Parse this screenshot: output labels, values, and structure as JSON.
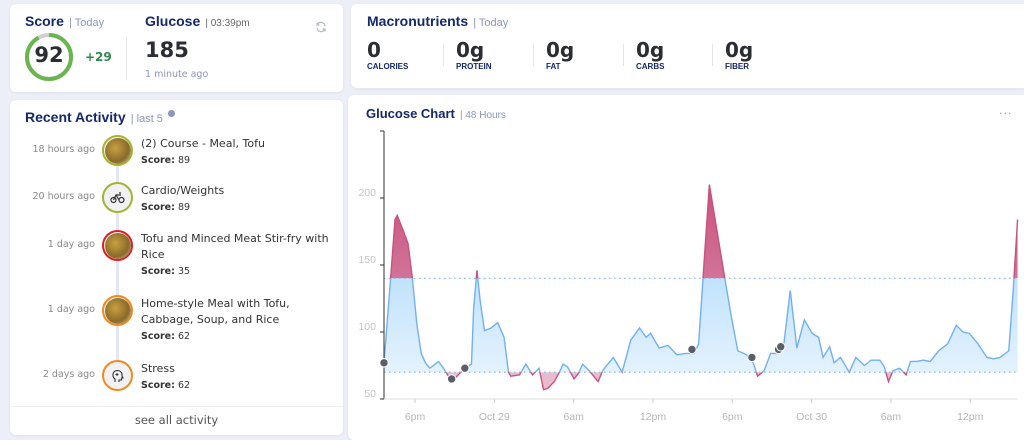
{
  "score": {
    "title": "Score",
    "period": "| Today",
    "value": "92",
    "fraction": 0.92,
    "delta": "+29",
    "ring_color": "#6ab550"
  },
  "glucose": {
    "title": "Glucose",
    "time": "| 03:39pm",
    "value": "185",
    "updated": "1 minute ago",
    "refresh_icon": "refresh-icon"
  },
  "macros": {
    "title": "Macronutrients",
    "period": "| Today",
    "items": [
      {
        "value": "0",
        "label": "CALORIES"
      },
      {
        "value": "0g",
        "label": "PROTEIN"
      },
      {
        "value": "0g",
        "label": "FAT"
      },
      {
        "value": "0g",
        "label": "CARBS"
      },
      {
        "value": "0g",
        "label": "FIBER"
      }
    ]
  },
  "activity": {
    "title": "Recent Activity",
    "period": "| last 5",
    "info_icon": "info-icon",
    "score_label": "Score:",
    "see_all": "see all activity",
    "items": [
      {
        "when": "18 hours ago",
        "name": "(2) Course - Meal, Tofu",
        "score": "89",
        "ring": "#a3b530",
        "icon": "meal-photo"
      },
      {
        "when": "20 hours ago",
        "name": "Cardio/Weights",
        "score": "89",
        "ring": "#a3b530",
        "icon": "bicycle-icon"
      },
      {
        "when": "1 day ago",
        "name": "Tofu and Minced Meat Stir-fry with Rice",
        "score": "35",
        "ring": "#e0201e",
        "icon": "meal-photo"
      },
      {
        "when": "1 day ago",
        "name": "Home-style Meal with Tofu, Cabbage, Soup, and Rice",
        "score": "62",
        "ring": "#f28a1c",
        "icon": "meal-photo"
      },
      {
        "when": "2 days ago",
        "name": "Stress",
        "score": "62",
        "ring": "#f28a1c",
        "icon": "head-icon"
      }
    ]
  },
  "chart": {
    "title": "Glucose Chart",
    "period": "| 48 Hours",
    "menu_icon": "more-icon"
  },
  "chart_data": {
    "type": "area",
    "ylim": [
      50,
      250
    ],
    "yticks": [
      50,
      100,
      150,
      200
    ],
    "xticks": [
      {
        "t": "Oct 28 18:00",
        "label": "6pm"
      },
      {
        "t": "Oct 29 00:00",
        "label": "Oct 29"
      },
      {
        "t": "Oct 29 06:00",
        "label": "6am"
      },
      {
        "t": "Oct 29 12:00",
        "label": "12pm"
      },
      {
        "t": "Oct 29 18:00",
        "label": "6pm"
      },
      {
        "t": "Oct 30 00:00",
        "label": "Oct 30"
      },
      {
        "t": "Oct 30 06:00",
        "label": "6am"
      },
      {
        "t": "Oct 30 12:00",
        "label": "12pm"
      }
    ],
    "target_range": [
      70,
      140
    ],
    "colors": {
      "in_range": "#72b0f5",
      "out_of_range": "#c9527f",
      "threshold": "#7cc6f5"
    },
    "series": [
      [
        "Oct 28 15:39",
        77
      ],
      [
        "Oct 28 16:09",
        140
      ],
      [
        "Oct 28 16:29",
        184
      ],
      [
        "Oct 28 16:39",
        187
      ],
      [
        "Oct 28 17:08",
        175
      ],
      [
        "Oct 28 17:28",
        166
      ],
      [
        "Oct 28 17:48",
        140
      ],
      [
        "Oct 28 18:08",
        106
      ],
      [
        "Oct 28 18:28",
        84
      ],
      [
        "Oct 28 18:47",
        77
      ],
      [
        "Oct 28 19:07",
        73
      ],
      [
        "Oct 28 19:47",
        78
      ],
      [
        "Oct 28 20:17",
        71
      ],
      [
        "Oct 28 20:46",
        63
      ],
      [
        "Oct 28 21:16",
        68
      ],
      [
        "Oct 28 21:46",
        73
      ],
      [
        "Oct 28 22:16",
        76
      ],
      [
        "Oct 28 22:26",
        118
      ],
      [
        "Oct 28 22:41",
        146
      ],
      [
        "Oct 28 22:55",
        124
      ],
      [
        "Oct 28 23:15",
        101
      ],
      [
        "Oct 28 23:45",
        103
      ],
      [
        "Oct 29 00:15",
        107
      ],
      [
        "Oct 29 00:44",
        96
      ],
      [
        "Oct 29 01:04",
        70
      ],
      [
        "Oct 29 01:14",
        67
      ],
      [
        "Oct 29 01:54",
        68
      ],
      [
        "Oct 29 02:23",
        76
      ],
      [
        "Oct 29 02:53",
        68
      ],
      [
        "Oct 29 03:23",
        73
      ],
      [
        "Oct 29 03:43",
        57
      ],
      [
        "Oct 29 04:03",
        58
      ],
      [
        "Oct 29 04:32",
        63
      ],
      [
        "Oct 29 04:52",
        69
      ],
      [
        "Oct 29 05:12",
        76
      ],
      [
        "Oct 29 05:32",
        74
      ],
      [
        "Oct 29 06:02",
        65
      ],
      [
        "Oct 29 06:21",
        69
      ],
      [
        "Oct 29 06:41",
        76
      ],
      [
        "Oct 29 07:11",
        71
      ],
      [
        "Oct 29 07:51",
        63
      ],
      [
        "Oct 29 08:11",
        71
      ],
      [
        "Oct 29 08:30",
        75
      ],
      [
        "Oct 29 09:00",
        81
      ],
      [
        "Oct 29 09:40",
        70
      ],
      [
        "Oct 29 10:19",
        94
      ],
      [
        "Oct 29 10:59",
        103
      ],
      [
        "Oct 29 11:29",
        96
      ],
      [
        "Oct 29 11:49",
        99
      ],
      [
        "Oct 29 12:28",
        88
      ],
      [
        "Oct 29 13:08",
        90
      ],
      [
        "Oct 29 13:48",
        83
      ],
      [
        "Oct 29 14:27",
        84
      ],
      [
        "Oct 29 15:07",
        84
      ],
      [
        "Oct 29 15:27",
        91
      ],
      [
        "Oct 29 15:47",
        140
      ],
      [
        "Oct 29 16:16",
        210
      ],
      [
        "Oct 29 16:46",
        180
      ],
      [
        "Oct 29 17:26",
        140
      ],
      [
        "Oct 29 17:56",
        111
      ],
      [
        "Oct 29 18:25",
        86
      ],
      [
        "Oct 29 19:05",
        83
      ],
      [
        "Oct 29 19:35",
        77
      ],
      [
        "Oct 29 19:55",
        67
      ],
      [
        "Oct 29 20:24",
        71
      ],
      [
        "Oct 29 20:54",
        84
      ],
      [
        "Oct 29 21:24",
        84
      ],
      [
        "Oct 29 21:54",
        91
      ],
      [
        "Oct 29 22:23",
        131
      ],
      [
        "Oct 29 22:53",
        88
      ],
      [
        "Oct 29 23:27",
        109
      ],
      [
        "Oct 30 00:03",
        99
      ],
      [
        "Oct 30 00:32",
        96
      ],
      [
        "Oct 30 00:52",
        81
      ],
      [
        "Oct 30 01:22",
        89
      ],
      [
        "Oct 30 01:42",
        77
      ],
      [
        "Oct 30 02:11",
        81
      ],
      [
        "Oct 30 02:51",
        70
      ],
      [
        "Oct 30 03:21",
        81
      ],
      [
        "Oct 30 04:00",
        75
      ],
      [
        "Oct 30 04:30",
        79
      ],
      [
        "Oct 30 05:10",
        79
      ],
      [
        "Oct 30 05:30",
        74
      ],
      [
        "Oct 30 05:49",
        63
      ],
      [
        "Oct 30 06:09",
        71
      ],
      [
        "Oct 30 06:39",
        73
      ],
      [
        "Oct 30 07:09",
        68
      ],
      [
        "Oct 30 07:29",
        78
      ],
      [
        "Oct 30 07:58",
        78
      ],
      [
        "Oct 30 08:28",
        79
      ],
      [
        "Oct 30 08:58",
        78
      ],
      [
        "Oct 30 09:37",
        86
      ],
      [
        "Oct 30 10:17",
        91
      ],
      [
        "Oct 30 10:57",
        105
      ],
      [
        "Oct 30 11:27",
        100
      ],
      [
        "Oct 30 11:56",
        99
      ],
      [
        "Oct 30 12:36",
        91
      ],
      [
        "Oct 30 13:16",
        81
      ],
      [
        "Oct 30 13:46",
        80
      ],
      [
        "Oct 30 14:15",
        81
      ],
      [
        "Oct 30 14:55",
        86
      ],
      [
        "Oct 30 15:15",
        131
      ],
      [
        "Oct 30 15:35",
        184
      ]
    ],
    "event_markers": [
      [
        "Oct 28 15:39",
        77
      ],
      [
        "Oct 28 20:46",
        65
      ],
      [
        "Oct 28 21:46",
        73
      ],
      [
        "Oct 29 14:57",
        87
      ],
      [
        "Oct 29 19:29",
        81
      ],
      [
        "Oct 29 21:30",
        87
      ],
      [
        "Oct 29 21:40",
        89
      ]
    ]
  }
}
